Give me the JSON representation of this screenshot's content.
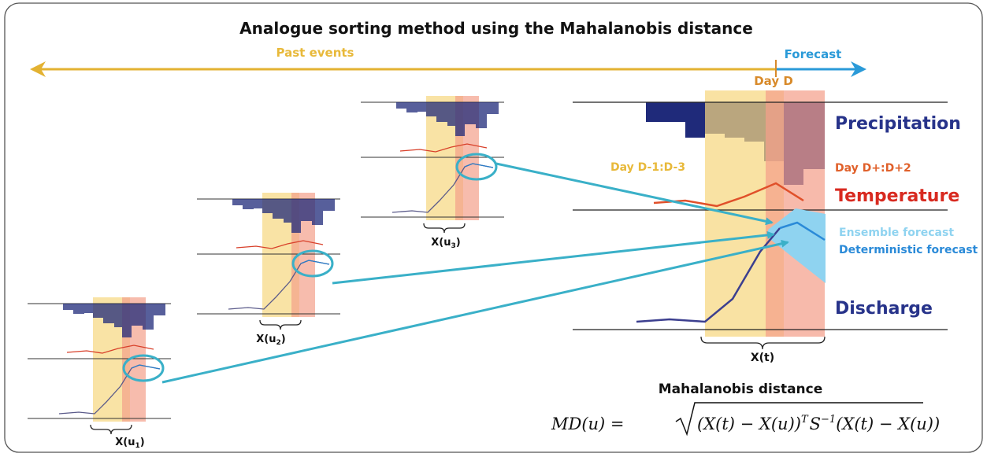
{
  "title": "Analogue sorting method using the Mahalanobis distance",
  "timeline": {
    "past": "Past events",
    "forecast": "Forecast",
    "day": "Day D"
  },
  "main_panel": {
    "before": "Day D-1:D-3",
    "after": "Day D+:D+2",
    "precipitation": "Precipitation",
    "temperature": "Temperature",
    "ensemble": "Ensemble forecast",
    "deterministic": "Deterministic forecast",
    "discharge": "Discharge",
    "label": "X(t)"
  },
  "analogues": [
    {
      "base": "X(u",
      "sub": "1",
      "close": ")"
    },
    {
      "base": "X(u",
      "sub": "2",
      "close": ")"
    },
    {
      "base": "X(u",
      "sub": "3",
      "close": ")"
    }
  ],
  "distance": {
    "heading": "Mahalanobis distance",
    "lhs": "MD(u) = ",
    "a": "(X(t) − X(u))",
    "sup1": "T",
    "s": "S",
    "sup2": "−1",
    "b": "(X(t) − X(u))"
  }
}
